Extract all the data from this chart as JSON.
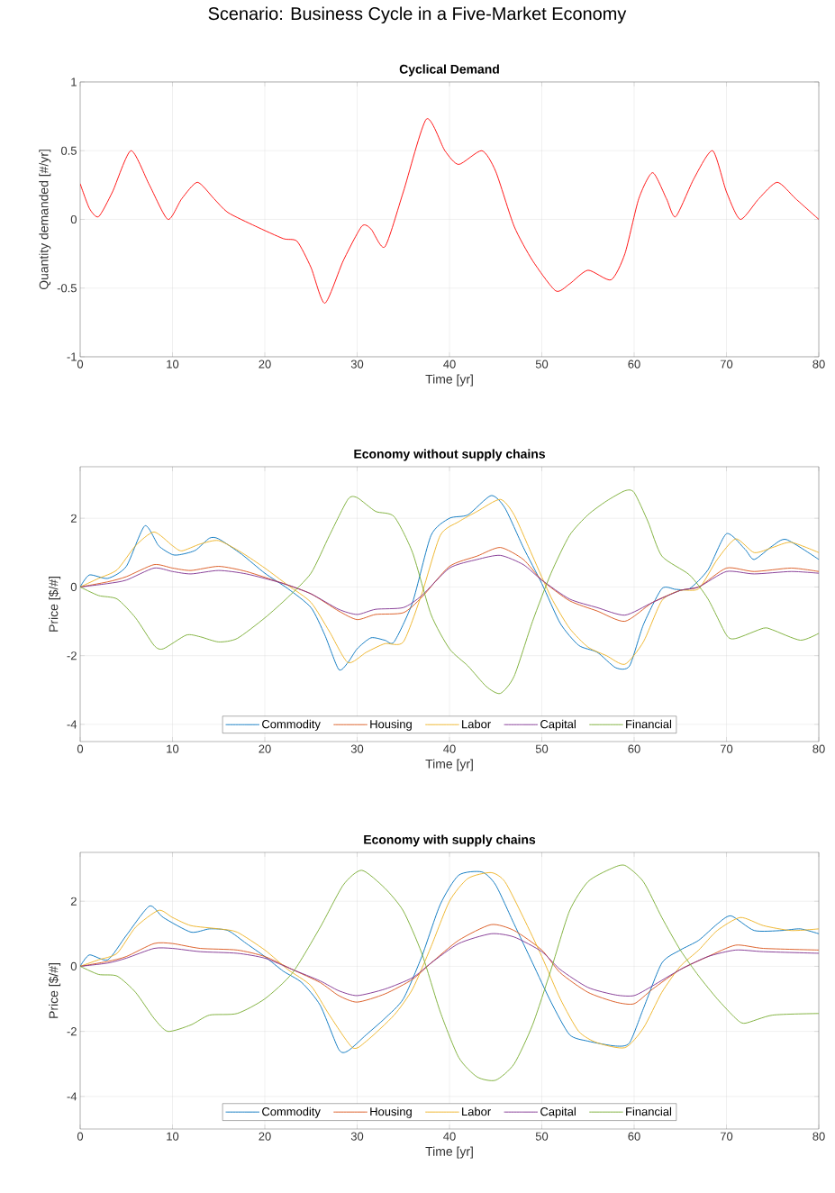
{
  "chart_data": [
    {
      "type": "line",
      "title": "Scenario: Business Cycle in a Five-Market Economy",
      "subtitle": "Cyclical Demand",
      "xlabel": "Time [yr]",
      "ylabel": "Quantity demanded [#/yr]",
      "xlim": [
        0,
        80
      ],
      "ylim": [
        -1,
        1
      ],
      "xticks": [
        0,
        10,
        20,
        30,
        40,
        50,
        60,
        70,
        80
      ],
      "yticks": [
        -1,
        -0.5,
        0,
        0.5,
        1
      ],
      "grid": true,
      "color": "#ff0000",
      "x": [
        0,
        1,
        2,
        3.5,
        5.5,
        7.5,
        9.5,
        11,
        12.7,
        14.5,
        16,
        19,
        22,
        23.5,
        25,
        26.5,
        28.5,
        30.5,
        31.5,
        33,
        35,
        37.5,
        39.5,
        41,
        43.5,
        45,
        47,
        49,
        51.5,
        53,
        55,
        57.5,
        59,
        60.5,
        62,
        63.5,
        64.5,
        66.5,
        68.5,
        70,
        71.5,
        73.5,
        75.5,
        77.5,
        80
      ],
      "values": [
        0.26,
        0.08,
        0.02,
        0.2,
        0.5,
        0.25,
        0,
        0.15,
        0.27,
        0.15,
        0.05,
        -0.05,
        -0.14,
        -0.16,
        -0.35,
        -0.61,
        -0.3,
        -0.05,
        -0.07,
        -0.2,
        0.2,
        0.73,
        0.5,
        0.4,
        0.5,
        0.35,
        -0.05,
        -0.3,
        -0.52,
        -0.47,
        -0.37,
        -0.44,
        -0.25,
        0.15,
        0.34,
        0.15,
        0.02,
        0.3,
        0.5,
        0.2,
        0,
        0.15,
        0.27,
        0.15,
        0
      ]
    },
    {
      "type": "line",
      "title": "Economy without supply chains",
      "xlabel": "Time [yr]",
      "ylabel": "Price [$/#]",
      "xlim": [
        0,
        80
      ],
      "ylim": [
        -4.5,
        3.5
      ],
      "xticks": [
        0,
        10,
        20,
        30,
        40,
        50,
        60,
        70,
        80
      ],
      "yticks": [
        -4,
        -2,
        0,
        2
      ],
      "grid": true,
      "legend": "bottom",
      "series": [
        {
          "name": "Commodity",
          "color": "#0072bd",
          "x": [
            0,
            1,
            3,
            5,
            7,
            8.5,
            10,
            11,
            12.5,
            14,
            15,
            17.5,
            20,
            22.5,
            25,
            26.5,
            28,
            29,
            30,
            31.5,
            33,
            34,
            36,
            38,
            40,
            42,
            44.5,
            46,
            48,
            50,
            52,
            54,
            56,
            58,
            59.5,
            61,
            63,
            64.5,
            66,
            68,
            70,
            72,
            73,
            75,
            76.5,
            80
          ],
          "values": [
            0,
            0.35,
            0.25,
            0.6,
            1.78,
            1.2,
            0.94,
            0.95,
            1.07,
            1.42,
            1.4,
            0.95,
            0.4,
            -0.05,
            -0.6,
            -1.4,
            -2.4,
            -2.2,
            -1.8,
            -1.48,
            -1.55,
            -1.6,
            -0.45,
            1.5,
            2.0,
            2.1,
            2.66,
            2.3,
            1.15,
            0.1,
            -1.06,
            -1.7,
            -1.9,
            -2.35,
            -2.3,
            -1.1,
            -0.05,
            -0.07,
            -0.05,
            0.5,
            1.55,
            1.1,
            0.8,
            1.2,
            1.38,
            0.8
          ]
        },
        {
          "name": "Housing",
          "color": "#d95319",
          "x": [
            0,
            3,
            5,
            8,
            10,
            12,
            15,
            18,
            22,
            25,
            28,
            30,
            32,
            35,
            37,
            40,
            43,
            45.5,
            48,
            50,
            53,
            56,
            59,
            62,
            65,
            67,
            70,
            73,
            77,
            80
          ],
          "values": [
            0,
            0.15,
            0.3,
            0.65,
            0.55,
            0.48,
            0.6,
            0.45,
            0.1,
            -0.2,
            -0.7,
            -0.95,
            -0.8,
            -0.75,
            -0.3,
            0.6,
            0.9,
            1.15,
            0.8,
            0.2,
            -0.4,
            -0.7,
            -1.0,
            -0.45,
            -0.1,
            0.0,
            0.55,
            0.45,
            0.55,
            0.45
          ]
        },
        {
          "name": "Labor",
          "color": "#edb120",
          "x": [
            0,
            2,
            4,
            6,
            8,
            10,
            11,
            13,
            15,
            17.5,
            20,
            22.5,
            25,
            27,
            29,
            31,
            33,
            35,
            37,
            39,
            41,
            43,
            45.5,
            47,
            49,
            51,
            53,
            55,
            57,
            59,
            61,
            63,
            65,
            67,
            69,
            71,
            73,
            75,
            77,
            80
          ],
          "values": [
            0,
            0.25,
            0.5,
            1.2,
            1.6,
            1.2,
            1.05,
            1.25,
            1.35,
            1.0,
            0.55,
            0.05,
            -0.45,
            -1.3,
            -2.2,
            -1.9,
            -1.65,
            -1.6,
            -0.2,
            1.5,
            1.9,
            2.2,
            2.55,
            2.1,
            0.9,
            -0.3,
            -1.2,
            -1.75,
            -2.0,
            -2.25,
            -1.6,
            -0.4,
            -0.1,
            -0.05,
            0.8,
            1.4,
            1.0,
            1.15,
            1.3,
            1.0
          ]
        },
        {
          "name": "Capital",
          "color": "#7e2f8e",
          "x": [
            0,
            3,
            5,
            8,
            10,
            12,
            15,
            18,
            22,
            25,
            28,
            30,
            32,
            35,
            37,
            40,
            43,
            45.5,
            48,
            50,
            53,
            56,
            59,
            62,
            65,
            67,
            70,
            73,
            77,
            80
          ],
          "values": [
            0,
            0.1,
            0.2,
            0.55,
            0.45,
            0.38,
            0.48,
            0.38,
            0.1,
            -0.2,
            -0.65,
            -0.8,
            -0.65,
            -0.6,
            -0.25,
            0.55,
            0.8,
            0.92,
            0.65,
            0.2,
            -0.35,
            -0.6,
            -0.82,
            -0.45,
            -0.1,
            0.0,
            0.45,
            0.38,
            0.45,
            0.4
          ]
        },
        {
          "name": "Financial",
          "color": "#77ac30",
          "x": [
            0,
            2,
            4,
            6,
            8,
            9,
            11.5,
            13,
            15,
            17,
            20,
            22.5,
            25,
            27,
            29,
            30,
            32,
            34,
            36,
            38,
            40,
            42,
            44,
            45.5,
            47,
            49,
            51,
            53,
            55,
            57,
            59,
            60,
            61.5,
            63,
            66,
            68,
            70,
            71,
            74,
            75,
            78,
            80
          ],
          "values": [
            0,
            -0.25,
            -0.35,
            -0.9,
            -1.7,
            -1.8,
            -1.4,
            -1.45,
            -1.6,
            -1.5,
            -0.9,
            -0.3,
            0.4,
            1.5,
            2.55,
            2.6,
            2.2,
            2.05,
            1.0,
            -0.8,
            -1.8,
            -2.3,
            -2.9,
            -3.1,
            -2.6,
            -1.0,
            0.4,
            1.5,
            2.1,
            2.5,
            2.8,
            2.75,
            1.9,
            0.9,
            0.35,
            -0.35,
            -1.4,
            -1.5,
            -1.2,
            -1.25,
            -1.55,
            -1.35
          ]
        }
      ]
    },
    {
      "type": "line",
      "title": "Economy with supply chains",
      "xlabel": "Time [yr]",
      "ylabel": "Price [$/#]",
      "xlim": [
        0,
        80
      ],
      "ylim": [
        -5,
        3.5
      ],
      "xticks": [
        0,
        10,
        20,
        30,
        40,
        50,
        60,
        70,
        80
      ],
      "yticks": [
        -4,
        -2,
        0,
        2
      ],
      "grid": true,
      "legend": "bottom",
      "series": [
        {
          "name": "Commodity",
          "color": "#0072bd",
          "x": [
            0,
            1,
            3,
            5,
            7.5,
            9,
            12,
            14,
            16,
            18,
            20,
            22,
            24,
            26,
            28,
            29,
            31,
            33,
            35,
            37,
            39,
            41,
            43.5,
            45,
            47,
            49,
            51,
            53,
            55,
            58,
            59.5,
            61,
            63,
            65,
            67,
            69,
            70.5,
            73,
            76,
            78,
            80
          ],
          "values": [
            0,
            0.35,
            0.2,
            0.95,
            1.85,
            1.5,
            1.05,
            1.15,
            1.1,
            0.7,
            0.3,
            -0.15,
            -0.5,
            -1.2,
            -2.55,
            -2.6,
            -2.1,
            -1.6,
            -1.0,
            0.3,
            1.9,
            2.8,
            2.9,
            2.5,
            1.3,
            0.1,
            -1.1,
            -2.1,
            -2.3,
            -2.45,
            -2.35,
            -1.3,
            0.1,
            0.5,
            0.8,
            1.3,
            1.55,
            1.1,
            1.1,
            1.15,
            1.0
          ]
        },
        {
          "name": "Housing",
          "color": "#d95319",
          "x": [
            0,
            3,
            5,
            8,
            10,
            13,
            17,
            20,
            23,
            26,
            28,
            30,
            33,
            36,
            38,
            41,
            44.5,
            47,
            50,
            52,
            55,
            58,
            60,
            62,
            65,
            68,
            71,
            74,
            80
          ],
          "values": [
            0,
            0.15,
            0.3,
            0.7,
            0.7,
            0.55,
            0.5,
            0.3,
            -0.1,
            -0.5,
            -0.9,
            -1.1,
            -0.85,
            -0.4,
            0.1,
            0.8,
            1.28,
            1.1,
            0.5,
            -0.2,
            -0.8,
            -1.1,
            -1.15,
            -0.7,
            -0.1,
            0.3,
            0.65,
            0.55,
            0.5
          ]
        },
        {
          "name": "Labor",
          "color": "#edb120",
          "x": [
            0,
            2,
            4,
            6,
            8.5,
            10,
            12,
            15,
            17,
            20,
            22.5,
            25,
            27,
            29.5,
            31,
            34,
            36,
            38,
            40,
            42,
            44.5,
            46,
            48,
            50,
            52,
            54,
            56,
            59,
            61,
            63,
            65,
            67,
            69,
            71.5,
            74,
            77,
            80
          ],
          "values": [
            0,
            0.2,
            0.4,
            1.2,
            1.72,
            1.5,
            1.25,
            1.15,
            1.05,
            0.5,
            -0.1,
            -0.6,
            -1.5,
            -2.5,
            -2.3,
            -1.5,
            -0.7,
            0.6,
            2.0,
            2.7,
            2.88,
            2.6,
            1.5,
            0.3,
            -1.0,
            -2.0,
            -2.35,
            -2.5,
            -1.9,
            -0.8,
            0.0,
            0.5,
            1.1,
            1.5,
            1.25,
            1.1,
            1.15
          ]
        },
        {
          "name": "Capital",
          "color": "#7e2f8e",
          "x": [
            0,
            3,
            5,
            8,
            10,
            13,
            17,
            20,
            23,
            26,
            28,
            30,
            33,
            36,
            38,
            41,
            44.5,
            47,
            50,
            52,
            55,
            58,
            60,
            62,
            65,
            68,
            71,
            74,
            80
          ],
          "values": [
            0,
            0.1,
            0.25,
            0.55,
            0.55,
            0.45,
            0.4,
            0.25,
            -0.1,
            -0.45,
            -0.75,
            -0.9,
            -0.7,
            -0.35,
            0.1,
            0.7,
            1.0,
            0.9,
            0.45,
            -0.1,
            -0.65,
            -0.88,
            -0.9,
            -0.6,
            -0.1,
            0.3,
            0.5,
            0.45,
            0.4
          ]
        },
        {
          "name": "Financial",
          "color": "#77ac30",
          "x": [
            0,
            2,
            4,
            6,
            8,
            9.5,
            12,
            14,
            17,
            20,
            23,
            26,
            28.5,
            30.5,
            33,
            35,
            37,
            39,
            41,
            43,
            45,
            47,
            49,
            51,
            53,
            55,
            57.5,
            59,
            61,
            63,
            65,
            67,
            69,
            71,
            72,
            75,
            80
          ],
          "values": [
            0,
            -0.25,
            -0.3,
            -0.8,
            -1.6,
            -2.0,
            -1.8,
            -1.5,
            -1.45,
            -1.0,
            -0.2,
            1.2,
            2.5,
            2.95,
            2.4,
            1.7,
            0.4,
            -1.4,
            -2.8,
            -3.4,
            -3.5,
            -3.0,
            -1.8,
            -0.1,
            1.7,
            2.6,
            3.0,
            3.1,
            2.6,
            1.5,
            0.5,
            -0.3,
            -1.0,
            -1.6,
            -1.75,
            -1.5,
            -1.45
          ]
        }
      ]
    }
  ]
}
